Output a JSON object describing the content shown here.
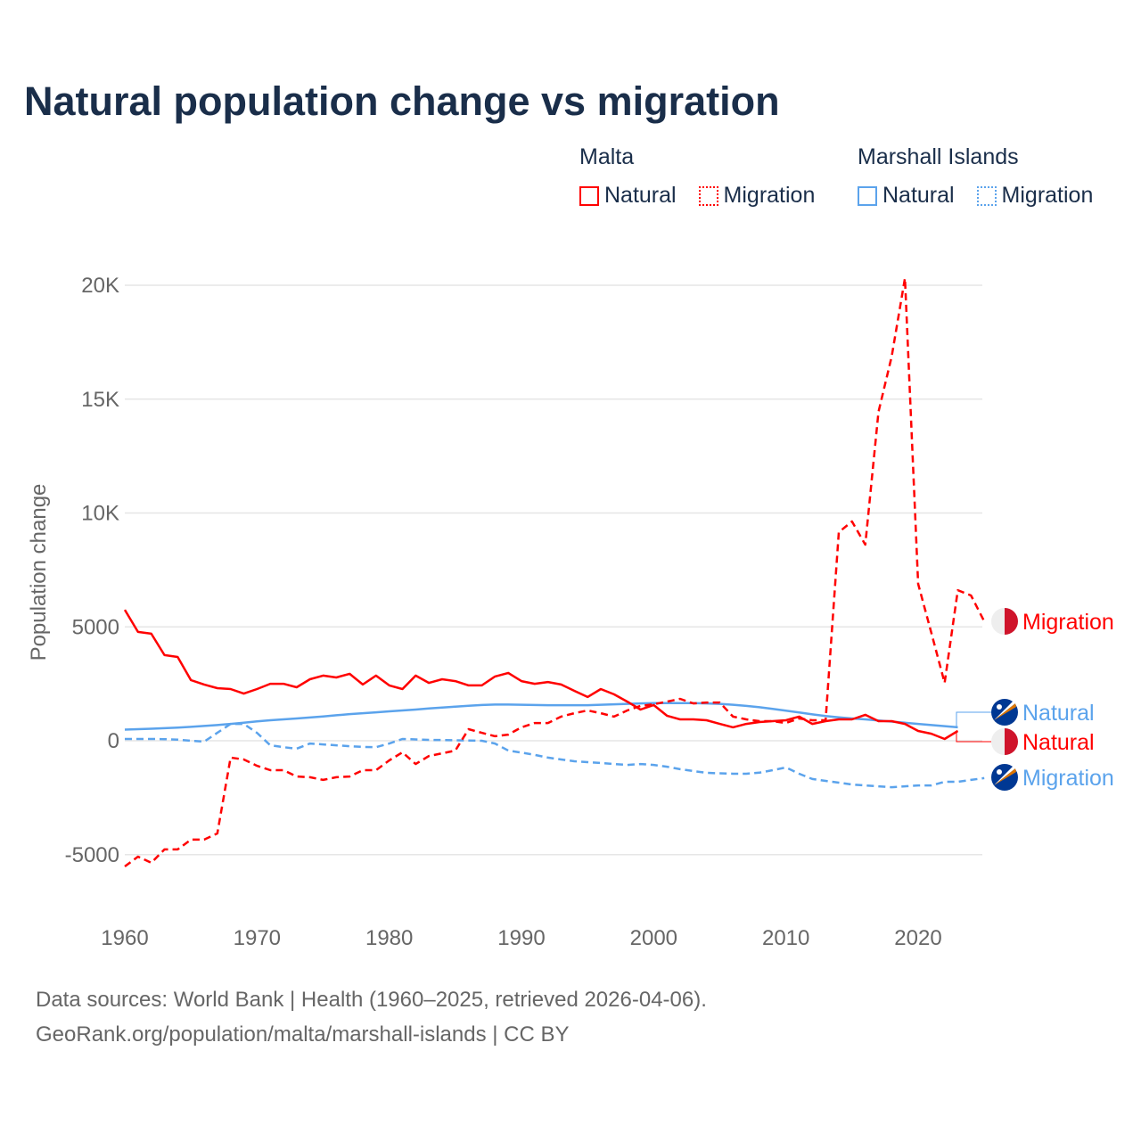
{
  "title": "Natural population change vs migration",
  "legend": {
    "groups": [
      {
        "name": "Malta",
        "items": [
          {
            "label": "Natural",
            "style": "solid",
            "color": "#ff0000"
          },
          {
            "label": "Migration",
            "style": "dotted",
            "color": "#ff0000"
          }
        ]
      },
      {
        "name": "Marshall Islands",
        "items": [
          {
            "label": "Natural",
            "style": "solid",
            "color": "#5ba3ec"
          },
          {
            "label": "Migration",
            "style": "dotted",
            "color": "#5ba3ec"
          }
        ]
      }
    ]
  },
  "end_labels": [
    {
      "label": "Migration",
      "country": "Malta",
      "color": "#ff0000",
      "flag": "malta-flag"
    },
    {
      "label": "Natural",
      "country": "Marshall Islands",
      "color": "#5ba3ec",
      "flag": "marshall-islands-flag"
    },
    {
      "label": "Natural",
      "country": "Malta",
      "color": "#ff0000",
      "flag": "malta-flag"
    },
    {
      "label": "Migration",
      "country": "Marshall Islands",
      "color": "#5ba3ec",
      "flag": "marshall-islands-flag"
    }
  ],
  "chart_data": {
    "type": "line",
    "title": "Natural population change vs migration",
    "xlabel": "",
    "ylabel": "Population change",
    "xlim": [
      1960,
      2025
    ],
    "ylim": [
      -5500,
      20500
    ],
    "xticks": [
      1960,
      1970,
      1980,
      1990,
      2000,
      2010,
      2020
    ],
    "yticks": [
      -5000,
      0,
      5000,
      10000,
      15000,
      20000
    ],
    "ytick_labels": [
      "-5000",
      "0",
      "5000",
      "10K",
      "15K",
      "20K"
    ],
    "grid": true,
    "series": [
      {
        "name": "Malta Natural",
        "color": "#ff0000",
        "dash": "solid",
        "x_start": 1960,
        "values": [
          5750,
          4780,
          4700,
          3760,
          3680,
          2660,
          2470,
          2310,
          2270,
          2070,
          2270,
          2500,
          2500,
          2350,
          2700,
          2860,
          2780,
          2940,
          2470,
          2860,
          2430,
          2270,
          2860,
          2540,
          2700,
          2620,
          2430,
          2430,
          2820,
          2980,
          2620,
          2500,
          2580,
          2470,
          2190,
          1920,
          2270,
          2040,
          1720,
          1370,
          1570,
          1100,
          940,
          940,
          900,
          740,
          590,
          740,
          820,
          860,
          900,
          1060,
          740,
          860,
          940,
          940,
          1140,
          860,
          860,
          740,
          430,
          310,
          80,
          430
        ]
      },
      {
        "name": "Malta Migration",
        "color": "#ff0000",
        "dash": "dashed",
        "x_start": 1960,
        "values": [
          -5520,
          -5090,
          -5360,
          -4770,
          -4770,
          -4340,
          -4340,
          -4070,
          -740,
          -820,
          -1100,
          -1290,
          -1290,
          -1570,
          -1600,
          -1720,
          -1600,
          -1570,
          -1290,
          -1290,
          -860,
          -510,
          -1020,
          -670,
          -550,
          -430,
          510,
          350,
          200,
          270,
          590,
          780,
          780,
          1060,
          1210,
          1330,
          1210,
          1060,
          1330,
          1530,
          1600,
          1720,
          1840,
          1640,
          1680,
          1680,
          1060,
          940,
          860,
          860,
          780,
          980,
          900,
          900,
          9160,
          9630,
          8610,
          14440,
          16870,
          20310,
          6890,
          4740,
          2540,
          6610,
          6380,
          5240
        ]
      },
      {
        "name": "Marshall Islands Natural",
        "color": "#5ba3ec",
        "dash": "solid",
        "x_start": 1960,
        "values": [
          490,
          510,
          530,
          550,
          580,
          610,
          650,
          690,
          740,
          790,
          850,
          900,
          940,
          980,
          1020,
          1070,
          1120,
          1170,
          1210,
          1250,
          1290,
          1330,
          1370,
          1420,
          1460,
          1500,
          1540,
          1570,
          1590,
          1590,
          1580,
          1570,
          1560,
          1560,
          1560,
          1560,
          1580,
          1600,
          1620,
          1640,
          1650,
          1650,
          1650,
          1650,
          1640,
          1620,
          1580,
          1530,
          1470,
          1400,
          1320,
          1240,
          1160,
          1090,
          1030,
          980,
          940,
          890,
          840,
          790,
          740,
          690,
          640,
          590
        ]
      },
      {
        "name": "Marshall Islands Migration",
        "color": "#5ba3ec",
        "dash": "dashed",
        "x_start": 1960,
        "values": [
          80,
          80,
          80,
          70,
          50,
          0,
          -40,
          350,
          740,
          740,
          350,
          -200,
          -280,
          -350,
          -120,
          -160,
          -200,
          -240,
          -270,
          -280,
          -120,
          80,
          60,
          40,
          30,
          20,
          10,
          0,
          -120,
          -430,
          -520,
          -620,
          -740,
          -820,
          -900,
          -940,
          -980,
          -1020,
          -1060,
          -1020,
          -1060,
          -1140,
          -1250,
          -1330,
          -1410,
          -1430,
          -1450,
          -1450,
          -1400,
          -1290,
          -1170,
          -1450,
          -1680,
          -1760,
          -1840,
          -1920,
          -1960,
          -2000,
          -2040,
          -2000,
          -1960,
          -1960,
          -1800,
          -1800,
          -1720,
          -1640
        ]
      }
    ]
  },
  "footer": {
    "line1": "Data sources: World Bank | Health (1960–2025, retrieved 2026-04-06).",
    "line2": "GeoRank.org/population/malta/marshall-islands | CC BY"
  }
}
